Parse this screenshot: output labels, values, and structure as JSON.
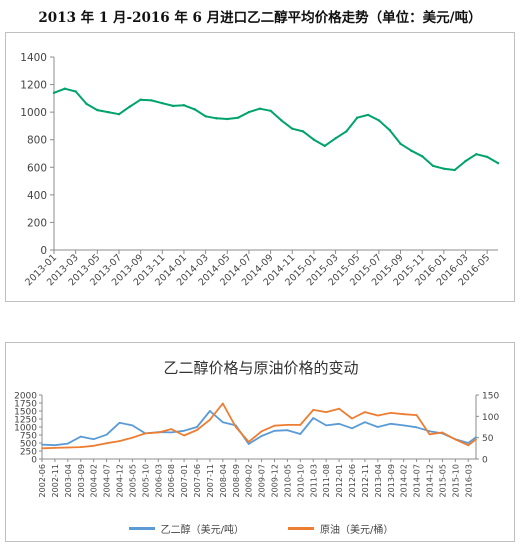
{
  "charts": [
    {
      "title": "2013 年 1 月-2016 年 6 月进口乙二醇平均价格走势（单位：美元/吨）"
    },
    {
      "title": "乙二醇价格与原油价格的变动"
    }
  ],
  "chart_data": [
    {
      "type": "line",
      "title": "2013 年 1 月-2016 年 6 月进口乙二醇平均价格走势（单位：美元/吨）",
      "ylim": [
        0,
        1400
      ],
      "yticks": [
        0,
        200,
        400,
        600,
        800,
        1000,
        1200,
        1400
      ],
      "grid": false,
      "x_tick_labels": [
        "2013-01",
        "2013-03",
        "2013-05",
        "2013-07",
        "2013-09",
        "2013-11",
        "2014-01",
        "2014-03",
        "2014-05",
        "2014-07",
        "2014-09",
        "2014-11",
        "2015-01",
        "2015-03",
        "2015-05",
        "2015-07",
        "2015-09",
        "2015-11",
        "2016-01",
        "2016-03",
        "2016-05"
      ],
      "x": [
        "2013-01",
        "2013-02",
        "2013-03",
        "2013-04",
        "2013-05",
        "2013-06",
        "2013-07",
        "2013-08",
        "2013-09",
        "2013-10",
        "2013-11",
        "2013-12",
        "2014-01",
        "2014-02",
        "2014-03",
        "2014-04",
        "2014-05",
        "2014-06",
        "2014-07",
        "2014-08",
        "2014-09",
        "2014-10",
        "2014-11",
        "2014-12",
        "2015-01",
        "2015-02",
        "2015-03",
        "2015-04",
        "2015-05",
        "2015-06",
        "2015-07",
        "2015-08",
        "2015-09",
        "2015-10",
        "2015-11",
        "2015-12",
        "2016-01",
        "2016-02",
        "2016-03",
        "2016-04",
        "2016-05",
        "2016-06"
      ],
      "series": [
        {
          "color": "#00a36b",
          "values": [
            1140,
            1170,
            1150,
            1060,
            1015,
            1000,
            985,
            1040,
            1090,
            1085,
            1065,
            1045,
            1050,
            1020,
            970,
            955,
            950,
            960,
            1000,
            1025,
            1010,
            940,
            880,
            860,
            800,
            755,
            810,
            860,
            960,
            980,
            940,
            870,
            770,
            720,
            680,
            610,
            590,
            580,
            645,
            695,
            675,
            630
          ]
        }
      ]
    },
    {
      "type": "line",
      "title": "乙二醇价格与原油价格的变动",
      "ylim": [
        0,
        2000
      ],
      "yticks": [
        0,
        250,
        500,
        750,
        1000,
        1250,
        1500,
        1750,
        2000
      ],
      "y2lim": [
        0,
        150
      ],
      "y2ticks": [
        0,
        50,
        100,
        150
      ],
      "grid": false,
      "legend_position": "bottom",
      "x_tick_labels": [
        "2002-06",
        "2002-11",
        "2003-04",
        "2003-09",
        "2004-02",
        "2004-07",
        "2004-12",
        "2005-05",
        "2005-10",
        "2006-03",
        "2006-08",
        "2007-01",
        "2007-06",
        "2007-11",
        "2008-04",
        "2008-09",
        "2009-02",
        "2009-07",
        "2009-12",
        "2010-05",
        "2010-10",
        "2011-03",
        "2011-08",
        "2012-01",
        "2012-06",
        "2012-11",
        "2013-04",
        "2013-09",
        "2014-02",
        "2014-07",
        "2014-12",
        "2015-05",
        "2015-10",
        "2016-03"
      ],
      "x": [
        "2002-06",
        "2002-11",
        "2003-04",
        "2003-09",
        "2004-02",
        "2004-07",
        "2004-12",
        "2005-05",
        "2005-10",
        "2006-03",
        "2006-08",
        "2007-01",
        "2007-06",
        "2007-11",
        "2008-04",
        "2008-09",
        "2009-02",
        "2009-07",
        "2009-12",
        "2010-05",
        "2010-10",
        "2011-03",
        "2011-08",
        "2012-01",
        "2012-06",
        "2012-11",
        "2013-04",
        "2013-09",
        "2014-02",
        "2014-07",
        "2014-12",
        "2015-05",
        "2015-10",
        "2016-03",
        "2016-06"
      ],
      "series": [
        {
          "name": "乙二醇（美元/吨）",
          "axis": "left",
          "color": "#5b9bd5",
          "values": [
            450,
            430,
            480,
            700,
            620,
            760,
            1130,
            1050,
            800,
            840,
            830,
            880,
            1000,
            1500,
            1150,
            1050,
            470,
            720,
            880,
            900,
            780,
            1280,
            1050,
            1100,
            960,
            1150,
            1000,
            1100,
            1050,
            990,
            870,
            800,
            620,
            500,
            680
          ]
        },
        {
          "name": "原油（美元/桶）",
          "axis": "right",
          "color": "#ed7d31",
          "values": [
            25,
            26,
            27,
            28,
            31,
            37,
            42,
            50,
            60,
            62,
            70,
            55,
            68,
            92,
            130,
            75,
            40,
            65,
            78,
            80,
            80,
            115,
            110,
            118,
            95,
            110,
            102,
            108,
            105,
            103,
            58,
            62,
            46,
            32,
            46
          ]
        }
      ]
    }
  ]
}
